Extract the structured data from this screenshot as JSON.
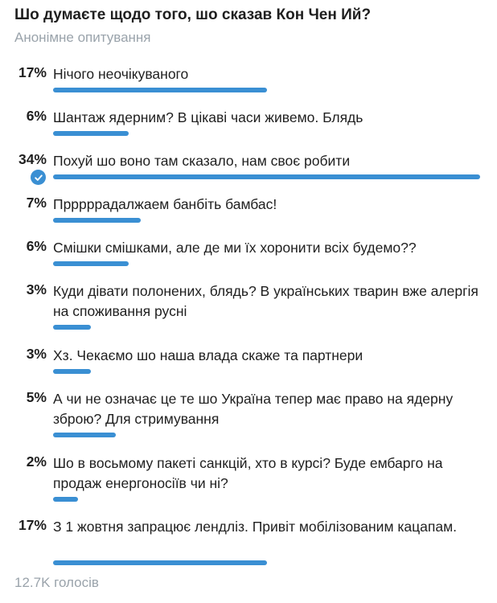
{
  "poll": {
    "question": "Шо думаєте щодо того, шо сказав Кон Чен Ий?",
    "type_label": "Анонімне опитування",
    "total_votes": "12.7K голосів",
    "accent_color": "#3a8fd3",
    "options": [
      {
        "percent": "17%",
        "value": 17,
        "label": "Нічого неочікуваного",
        "selected": false
      },
      {
        "percent": "6%",
        "value": 6,
        "label": "Шантаж ядерним? В цікаві часи живемо. Блядь",
        "selected": false
      },
      {
        "percent": "34%",
        "value": 34,
        "label": "Похуй шо воно там сказало, нам своє робити",
        "selected": true
      },
      {
        "percent": "7%",
        "value": 7,
        "label": "Прррррадалжаем банбіть бамбас!",
        "selected": false
      },
      {
        "percent": "6%",
        "value": 6,
        "label": "Смішки смішками, але де ми їх хоронити всіх будемо??",
        "selected": false
      },
      {
        "percent": "3%",
        "value": 3,
        "label": "Куди дівати полонених, блядь? В українських тварин вже алергія на споживання русні",
        "selected": false
      },
      {
        "percent": "3%",
        "value": 3,
        "label": "Хз. Чекаємо шо наша влада скаже та партнери",
        "selected": false
      },
      {
        "percent": "5%",
        "value": 5,
        "label": "А чи не означає це те шо Україна тепер має право на ядерну зброю? Для стримування",
        "selected": false
      },
      {
        "percent": "2%",
        "value": 2,
        "label": "Шо в восьмому пакеті санкцій, хто в курсі? Буде ембарго на продаж енергоносіїв чи ні?",
        "selected": false
      },
      {
        "percent": "17%",
        "value": 17,
        "label": "З 1 жовтня запрацює лендліз. Привіт  мобілізованим кацапам.",
        "selected": false
      }
    ]
  }
}
